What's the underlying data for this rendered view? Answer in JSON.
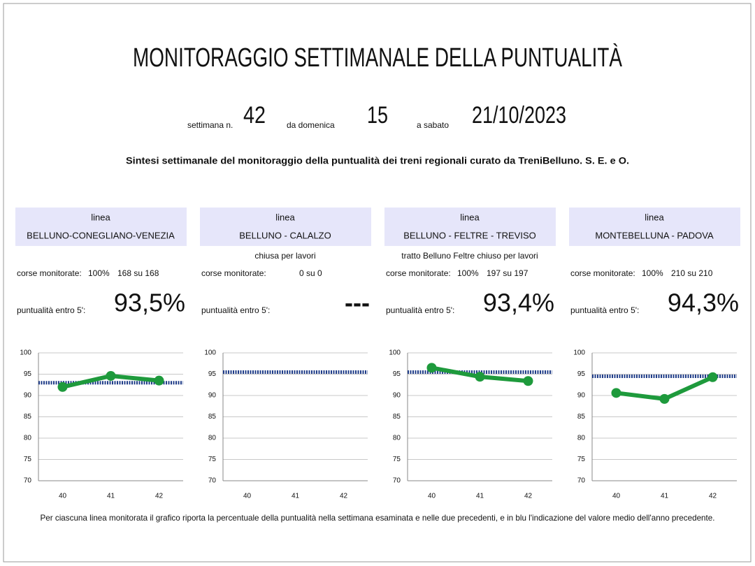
{
  "title": "MONITORAGGIO  SETTIMANALE  DELLA  PUNTUALITÀ",
  "week_label": "settimana n.",
  "week": 42,
  "from_label": "da domenica",
  "from": 15,
  "to_label": "a sabato",
  "to": "21/10/2023",
  "subtitle": "Sintesi settimanale del monitoraggio della puntualità dei treni regionali curato da TreniBelluno.   S. E. e O.",
  "lines": [
    {
      "header": "linea",
      "name": "BELLUNO-CONEGLIANO-VENEZIA",
      "monitored_label": "corse monitorate:",
      "monitored_pct": "100%",
      "monitored_count": "168 su 168",
      "punctuality_label": "puntualità entro 5':",
      "punctuality": "93,5%"
    },
    {
      "header": "linea",
      "name": "BELLUNO - CALALZO",
      "note": "chiusa per lavori",
      "monitored_label": "corse monitorate:",
      "monitored_count": "0 su 0",
      "punctuality_label": "puntualità entro 5':",
      "punctuality": "---"
    },
    {
      "header": "linea",
      "name": "BELLUNO - FELTRE - TREVISO",
      "note": "tratto Belluno Feltre chiuso per lavori",
      "monitored_label": "corse monitorate:",
      "monitored_pct": "100%",
      "monitored_count": "197 su 197",
      "punctuality_label": "puntualità entro 5':",
      "punctuality": "93,4%"
    },
    {
      "header": "linea",
      "name": "MONTEBELLUNA - PADOVA",
      "monitored_label": "corse monitorate:",
      "monitored_pct": "100%",
      "monitored_count": "210 su 210",
      "punctuality_label": "puntualità entro 5':",
      "punctuality": "94,3%"
    }
  ],
  "chart_data": [
    {
      "type": "line",
      "categories": [
        "40",
        "41",
        "42"
      ],
      "series": [
        {
          "color": "#1e9a3c",
          "values": [
            92,
            94.6,
            93.5
          ]
        }
      ],
      "reference_line": {
        "value": 93,
        "color": "#1f3c88"
      },
      "ylim": [
        70,
        100
      ],
      "yticks": [
        70,
        75,
        80,
        85,
        90,
        95,
        100
      ],
      "grid": true
    },
    {
      "type": "line",
      "categories": [
        "40",
        "41",
        "42"
      ],
      "series": [
        {
          "color": "#1e9a3c",
          "values": [
            null,
            null,
            null
          ]
        }
      ],
      "reference_line": {
        "value": 95.5,
        "color": "#1f3c88"
      },
      "ylim": [
        70,
        100
      ],
      "yticks": [
        70,
        75,
        80,
        85,
        90,
        95,
        100
      ],
      "grid": true
    },
    {
      "type": "line",
      "categories": [
        "40",
        "41",
        "42"
      ],
      "series": [
        {
          "color": "#1e9a3c",
          "values": [
            96.5,
            94.4,
            93.4
          ]
        }
      ],
      "reference_line": {
        "value": 95.5,
        "color": "#1f3c88"
      },
      "ylim": [
        70,
        100
      ],
      "yticks": [
        70,
        75,
        80,
        85,
        90,
        95,
        100
      ],
      "grid": true
    },
    {
      "type": "line",
      "categories": [
        "40",
        "41",
        "42"
      ],
      "series": [
        {
          "color": "#1e9a3c",
          "values": [
            90.6,
            89.2,
            94.3
          ]
        }
      ],
      "reference_line": {
        "value": 94.5,
        "color": "#1f3c88"
      },
      "ylim": [
        70,
        100
      ],
      "yticks": [
        70,
        75,
        80,
        85,
        90,
        95,
        100
      ],
      "grid": true
    }
  ],
  "footer": "Per ciascuna linea monitorata il grafico riporta la percentuale della puntualità nella settimana esaminata e nelle due precedenti, e in blu l'indicazione del valore medio dell'anno precedente."
}
